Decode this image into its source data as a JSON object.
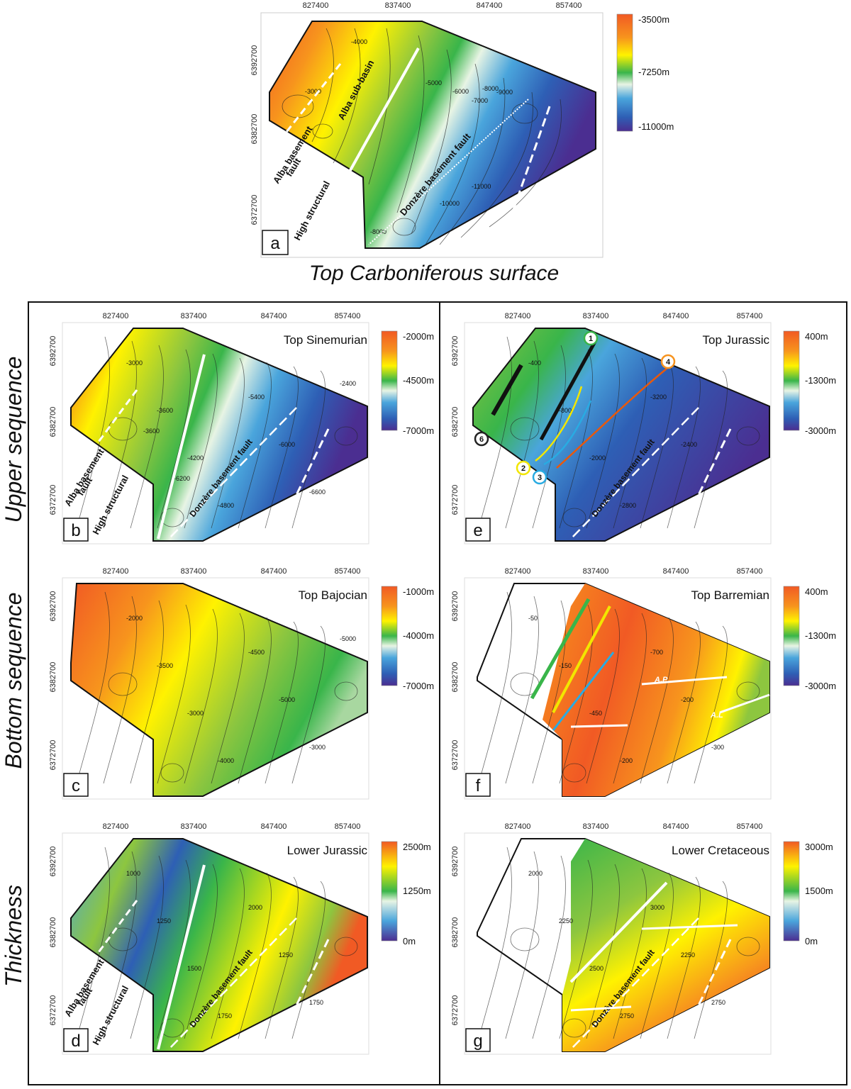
{
  "figure": {
    "main_title": "Top Carboniferous surface",
    "section_labels": {
      "upper": "Upper sequence",
      "bottom": "Bottom sequence",
      "thickness": "Thickness"
    }
  },
  "axes": {
    "x_ticks": [
      "827400",
      "837400",
      "847400",
      "857400"
    ],
    "y_ticks": [
      "6392700",
      "6382700",
      "6372700"
    ]
  },
  "panels": [
    {
      "id": "a",
      "letter": "a",
      "title": "",
      "colorbar": [
        "-3500m",
        "-7250m",
        "-11000m"
      ],
      "fault_labels": {
        "alba1": "Alba basement",
        "alba2": "fault",
        "high": "High structural",
        "donzere": "Donzère basement fault",
        "subbasin": "Alba sub-basin"
      },
      "contours": [
        "-4000",
        "-5000",
        "-6000",
        "-7000",
        "-8000",
        "-9000",
        "-10000",
        "-11000",
        "-3000",
        "-8000"
      ]
    },
    {
      "id": "b",
      "letter": "b",
      "title": "Top Sinemurian",
      "colorbar": [
        "-2000m",
        "-4500m",
        "-7000m"
      ],
      "fault_labels": {
        "alba1": "Alba basement",
        "alba2": "fault",
        "high": "High structural",
        "donzere": "Donzère basement fault"
      },
      "contours": [
        "-3000",
        "-3600",
        "-4200",
        "-4800",
        "-5400",
        "-6000",
        "-6600",
        "-2400",
        "-3600",
        "-6200"
      ]
    },
    {
      "id": "c",
      "letter": "c",
      "title": "Top Bajocian",
      "colorbar": [
        "-1000m",
        "-4000m",
        "-7000m"
      ],
      "contours": [
        "-2000",
        "-3500",
        "-3000",
        "-4000",
        "-4500",
        "-5000",
        "-3000",
        "-5000"
      ]
    },
    {
      "id": "d",
      "letter": "d",
      "title": "Lower Jurassic",
      "colorbar": [
        "2500m",
        "1250m",
        "0m"
      ],
      "fault_labels": {
        "alba1": "Alba basement",
        "alba2": "fault",
        "high": "High structural",
        "donzere": "Donzère basement fault"
      },
      "contours": [
        "1000",
        "1250",
        "1500",
        "1750",
        "2000",
        "1250",
        "1750"
      ]
    },
    {
      "id": "e",
      "letter": "e",
      "title": "Top Jurassic",
      "colorbar": [
        "400m",
        "-1300m",
        "-3000m"
      ],
      "fault_labels": {
        "donzere": "Donzère basement fault"
      },
      "markers": [
        "1",
        "2",
        "3",
        "4",
        "6"
      ],
      "contours": [
        "-400",
        "-800",
        "-2000",
        "-2800",
        "-3200",
        "-2400"
      ]
    },
    {
      "id": "f",
      "letter": "f",
      "title": "Top Barremian",
      "colorbar": [
        "400m",
        "-1300m",
        "-3000m"
      ],
      "labels": {
        "ap": "A.P",
        "al": "A.L"
      },
      "contours": [
        "-50",
        "-150",
        "-450",
        "-200",
        "-700",
        "-200",
        "-300"
      ]
    },
    {
      "id": "g",
      "letter": "g",
      "title": "Lower Cretaceous",
      "colorbar": [
        "3000m",
        "1500m",
        "0m"
      ],
      "fault_labels": {
        "donzere": "Donzère basement fault"
      },
      "contours": [
        "2000",
        "2250",
        "2500",
        "2750",
        "3000",
        "2250",
        "2750"
      ]
    }
  ],
  "colors": {
    "depth_ramp": [
      "#f15a24",
      "#f7941d",
      "#fff200",
      "#8dc63f",
      "#39b54a",
      "#e8f4e4",
      "#4aa5dc",
      "#2e5fb5",
      "#4b2e91"
    ],
    "barremian_ramp": [
      "#f15a24",
      "#f7941d",
      "#f9c74f",
      "#fff200",
      "#8dc63f"
    ],
    "marker_1": "#39b54a",
    "marker_2": "#f2e600",
    "marker_3": "#29abe2",
    "marker_4": "#f7931e",
    "marker_6": "#222222",
    "fault_white": "#ffffff",
    "orange_fault": "#e8590c",
    "blue_fault": "#29abe2",
    "yellow_fault": "#f2e600"
  }
}
